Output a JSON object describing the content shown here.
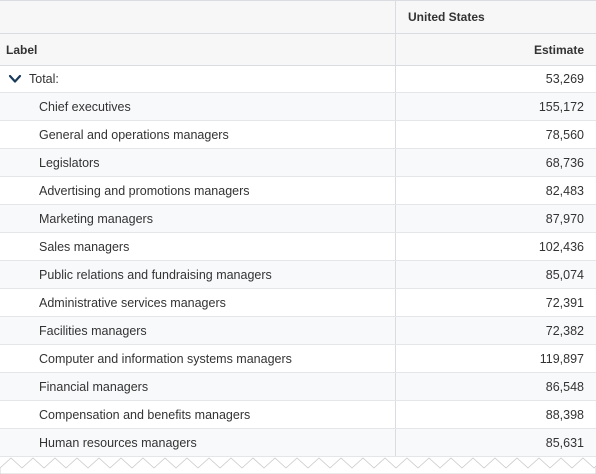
{
  "header": {
    "geo_label": "United States",
    "label_col": "Label",
    "estimate_col": "Estimate"
  },
  "total": {
    "label": "Total:",
    "value": "53,269"
  },
  "rows": [
    {
      "label": "Chief executives",
      "value": "155,172"
    },
    {
      "label": "General and operations managers",
      "value": "78,560"
    },
    {
      "label": "Legislators",
      "value": "68,736"
    },
    {
      "label": "Advertising and promotions managers",
      "value": "82,483"
    },
    {
      "label": "Marketing managers",
      "value": "87,970"
    },
    {
      "label": "Sales managers",
      "value": "102,436"
    },
    {
      "label": "Public relations and fundraising managers",
      "value": "85,074"
    },
    {
      "label": "Administrative services managers",
      "value": "72,391"
    },
    {
      "label": "Facilities managers",
      "value": "72,382"
    },
    {
      "label": "Computer and information systems managers",
      "value": "119,897"
    },
    {
      "label": "Financial managers",
      "value": "86,548"
    },
    {
      "label": "Compensation and benefits managers",
      "value": "88,398"
    },
    {
      "label": "Human resources managers",
      "value": "85,631"
    }
  ]
}
